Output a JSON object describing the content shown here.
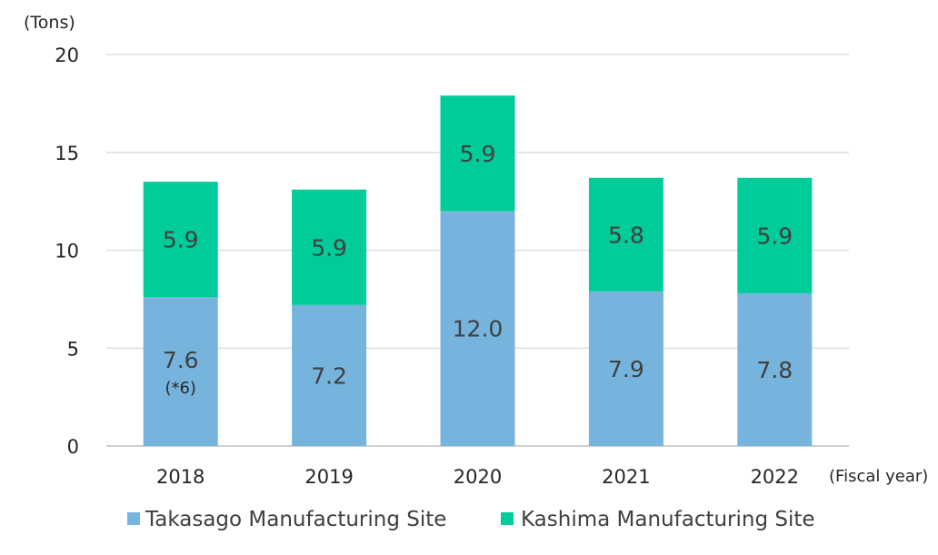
{
  "chart_data": {
    "type": "bar",
    "stacked": true,
    "title": "",
    "ylabel": "(Tons)",
    "xlabel": "(Fiscal year)",
    "ylim": [
      0,
      20
    ],
    "yticks": [
      0,
      5,
      10,
      15,
      20
    ],
    "grid": true,
    "legend_position": "bottom",
    "categories": [
      "2018",
      "2019",
      "2020",
      "2021",
      "2022"
    ],
    "series": [
      {
        "name": "Takasago Manufacturing Site",
        "color": "#76B4DE",
        "values": [
          7.6,
          7.2,
          12.0,
          7.9,
          7.8
        ],
        "labels": [
          "7.6",
          "7.2",
          "12.0",
          "7.9",
          "7.8"
        ]
      },
      {
        "name": "Kashima Manufacturing Site",
        "color": "#00CC99",
        "values": [
          5.9,
          5.9,
          5.9,
          5.8,
          5.9
        ],
        "labels": [
          "5.9",
          "5.9",
          "5.9",
          "5.8",
          "5.9"
        ]
      }
    ],
    "annotations": [
      {
        "category": "2018",
        "series": "Takasago Manufacturing Site",
        "text": "(*6)"
      }
    ]
  }
}
